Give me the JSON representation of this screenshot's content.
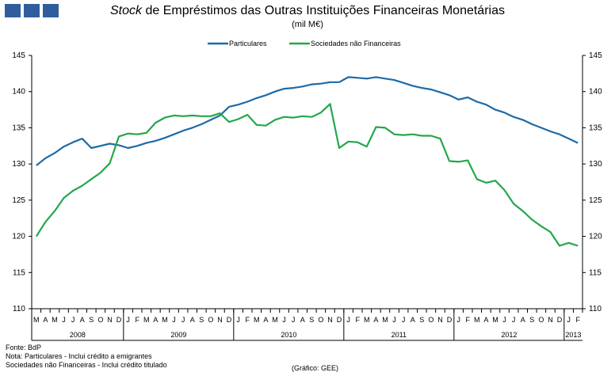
{
  "colors": {
    "accent": "#2f5e9e",
    "particulares": "#1f6aa5",
    "sociedades": "#23a84a"
  },
  "header": {
    "title_italic": "Stock",
    "title_rest": " de Empréstimos das Outras Instituições Financeiras Monetárias",
    "subtitle": "(mil M€)"
  },
  "footer": {
    "fonte": "Fonte: BdP",
    "nota1": "Nota: Particulares - Inclui crédito a emigrantes",
    "nota2": "Sociedades não Financeiras - Inclui crédito titulado",
    "grafico": "(Gráfico: GEE)"
  },
  "chart_data": {
    "type": "line",
    "title": "Stock de Empréstimos das Outras Instituições Financeiras Monetárias",
    "ylabel": "(mil M€)",
    "ylim": [
      110,
      145
    ],
    "yticks": [
      110,
      115,
      120,
      125,
      130,
      135,
      140,
      145
    ],
    "legend_position": "top",
    "month_labels": [
      "M",
      "A",
      "M",
      "J",
      "J",
      "A",
      "S",
      "O",
      "N",
      "D",
      "J",
      "F",
      "M",
      "A",
      "M",
      "J",
      "J",
      "A",
      "S",
      "O",
      "N",
      "D",
      "J",
      "F",
      "M",
      "A",
      "M",
      "J",
      "J",
      "A",
      "S",
      "O",
      "N",
      "D",
      "J",
      "F",
      "M",
      "A",
      "M",
      "J",
      "J",
      "A",
      "S",
      "O",
      "N",
      "D",
      "J",
      "F",
      "M",
      "A",
      "M",
      "J",
      "J",
      "A",
      "S",
      "O",
      "N",
      "D",
      "J",
      "F"
    ],
    "year_labels": [
      {
        "label": "2008",
        "start": 0,
        "span": 10
      },
      {
        "label": "2009",
        "start": 10,
        "span": 12
      },
      {
        "label": "2010",
        "start": 22,
        "span": 12
      },
      {
        "label": "2011",
        "start": 34,
        "span": 12
      },
      {
        "label": "2012",
        "start": 46,
        "span": 12
      },
      {
        "label": "2013",
        "start": 58,
        "span": 2
      }
    ],
    "series": [
      {
        "name": "Particulares",
        "color": "#1f6aa5",
        "values": [
          129.8,
          130.8,
          131.5,
          132.4,
          133.0,
          133.5,
          132.2,
          132.5,
          132.8,
          132.6,
          132.2,
          132.5,
          132.9,
          133.2,
          133.6,
          134.1,
          134.6,
          135.0,
          135.5,
          136.1,
          136.7,
          137.9,
          138.2,
          138.6,
          139.1,
          139.5,
          140.0,
          140.4,
          140.5,
          140.7,
          141.0,
          141.1,
          141.3,
          141.3,
          142.0,
          141.9,
          141.8,
          142.0,
          141.8,
          141.6,
          141.2,
          140.8,
          140.5,
          140.3,
          139.9,
          139.5,
          138.9,
          139.2,
          138.6,
          138.2,
          137.5,
          137.1,
          136.5,
          136.1,
          135.5,
          135.0,
          134.5,
          134.1,
          133.5,
          132.9
        ]
      },
      {
        "name": "Sociedades não Financeiras",
        "color": "#23a84a",
        "values": [
          120.0,
          122.0,
          123.5,
          125.3,
          126.3,
          127.0,
          127.9,
          128.8,
          130.1,
          133.8,
          134.2,
          134.1,
          134.3,
          135.7,
          136.4,
          136.7,
          136.6,
          136.7,
          136.6,
          136.6,
          137.0,
          135.8,
          136.2,
          136.8,
          135.4,
          135.3,
          136.1,
          136.5,
          136.4,
          136.6,
          136.5,
          137.1,
          138.3,
          132.2,
          133.1,
          133.0,
          132.4,
          135.1,
          135.0,
          134.1,
          134.0,
          134.1,
          133.9,
          133.9,
          133.5,
          130.4,
          130.3,
          130.5,
          127.9,
          127.4,
          127.7,
          126.4,
          124.5,
          123.5,
          122.3,
          121.4,
          120.6,
          118.7,
          119.1,
          118.7
        ]
      }
    ]
  }
}
